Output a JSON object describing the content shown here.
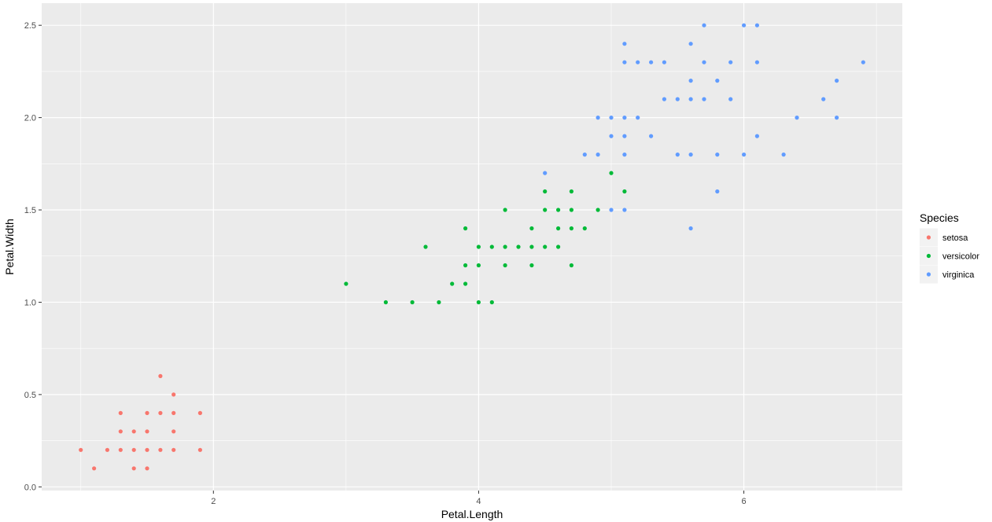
{
  "chart_data": {
    "type": "scatter",
    "xlabel": "Petal.Length",
    "ylabel": "Petal.Width",
    "xlim": [
      0.705,
      7.195
    ],
    "ylim": [
      -0.02,
      2.62
    ],
    "x_ticks": [
      2,
      4,
      6
    ],
    "x_tick_labels": [
      "2",
      "4",
      "6"
    ],
    "y_ticks": [
      0,
      0.5,
      1,
      1.5,
      2,
      2.5
    ],
    "y_tick_labels": [
      "0.0",
      "0.5",
      "1.0",
      "1.5",
      "2.0",
      "2.5"
    ],
    "grid": true,
    "legend": {
      "title": "Species",
      "position": "right"
    },
    "series": [
      {
        "name": "setosa",
        "color": "#F8766D",
        "points": [
          [
            1.0,
            0.2
          ],
          [
            1.1,
            0.1
          ],
          [
            1.2,
            0.2
          ],
          [
            1.3,
            0.2
          ],
          [
            1.3,
            0.3
          ],
          [
            1.3,
            0.4
          ],
          [
            1.4,
            0.1
          ],
          [
            1.4,
            0.2
          ],
          [
            1.4,
            0.3
          ],
          [
            1.5,
            0.1
          ],
          [
            1.5,
            0.2
          ],
          [
            1.5,
            0.3
          ],
          [
            1.5,
            0.4
          ],
          [
            1.6,
            0.2
          ],
          [
            1.6,
            0.4
          ],
          [
            1.6,
            0.6
          ],
          [
            1.7,
            0.2
          ],
          [
            1.7,
            0.3
          ],
          [
            1.7,
            0.4
          ],
          [
            1.7,
            0.5
          ],
          [
            1.9,
            0.2
          ],
          [
            1.9,
            0.4
          ]
        ]
      },
      {
        "name": "versicolor",
        "color": "#00BA38",
        "points": [
          [
            3.0,
            1.1
          ],
          [
            3.3,
            1.0
          ],
          [
            3.5,
            1.0
          ],
          [
            3.6,
            1.3
          ],
          [
            3.7,
            1.0
          ],
          [
            3.8,
            1.1
          ],
          [
            3.9,
            1.1
          ],
          [
            3.9,
            1.2
          ],
          [
            3.9,
            1.4
          ],
          [
            4.0,
            1.0
          ],
          [
            4.0,
            1.2
          ],
          [
            4.0,
            1.3
          ],
          [
            4.1,
            1.0
          ],
          [
            4.1,
            1.3
          ],
          [
            4.2,
            1.2
          ],
          [
            4.2,
            1.3
          ],
          [
            4.2,
            1.5
          ],
          [
            4.3,
            1.3
          ],
          [
            4.4,
            1.2
          ],
          [
            4.4,
            1.3
          ],
          [
            4.4,
            1.4
          ],
          [
            4.5,
            1.3
          ],
          [
            4.5,
            1.5
          ],
          [
            4.5,
            1.6
          ],
          [
            4.6,
            1.3
          ],
          [
            4.6,
            1.4
          ],
          [
            4.6,
            1.5
          ],
          [
            4.7,
            1.2
          ],
          [
            4.7,
            1.4
          ],
          [
            4.7,
            1.5
          ],
          [
            4.7,
            1.6
          ],
          [
            4.8,
            1.4
          ],
          [
            4.9,
            1.5
          ],
          [
            5.0,
            1.7
          ],
          [
            5.1,
            1.6
          ]
        ]
      },
      {
        "name": "virginica",
        "color": "#619CFF",
        "points": [
          [
            4.5,
            1.7
          ],
          [
            4.8,
            1.8
          ],
          [
            4.9,
            1.8
          ],
          [
            4.9,
            2.0
          ],
          [
            5.0,
            1.5
          ],
          [
            5.0,
            1.9
          ],
          [
            5.0,
            2.0
          ],
          [
            5.1,
            1.5
          ],
          [
            5.1,
            1.8
          ],
          [
            5.1,
            1.9
          ],
          [
            5.1,
            2.0
          ],
          [
            5.1,
            2.3
          ],
          [
            5.1,
            2.4
          ],
          [
            5.2,
            2.0
          ],
          [
            5.2,
            2.3
          ],
          [
            5.3,
            1.9
          ],
          [
            5.3,
            2.3
          ],
          [
            5.4,
            2.1
          ],
          [
            5.4,
            2.3
          ],
          [
            5.5,
            1.8
          ],
          [
            5.5,
            2.1
          ],
          [
            5.6,
            1.4
          ],
          [
            5.6,
            1.8
          ],
          [
            5.6,
            2.1
          ],
          [
            5.6,
            2.2
          ],
          [
            5.6,
            2.4
          ],
          [
            5.7,
            2.1
          ],
          [
            5.7,
            2.3
          ],
          [
            5.7,
            2.5
          ],
          [
            5.8,
            1.6
          ],
          [
            5.8,
            1.8
          ],
          [
            5.8,
            2.2
          ],
          [
            5.9,
            2.1
          ],
          [
            5.9,
            2.3
          ],
          [
            6.0,
            1.8
          ],
          [
            6.0,
            2.5
          ],
          [
            6.1,
            1.9
          ],
          [
            6.1,
            2.3
          ],
          [
            6.1,
            2.5
          ],
          [
            6.3,
            1.8
          ],
          [
            6.4,
            2.0
          ],
          [
            6.6,
            2.1
          ],
          [
            6.7,
            2.0
          ],
          [
            6.7,
            2.2
          ],
          [
            6.9,
            2.3
          ]
        ]
      }
    ]
  }
}
